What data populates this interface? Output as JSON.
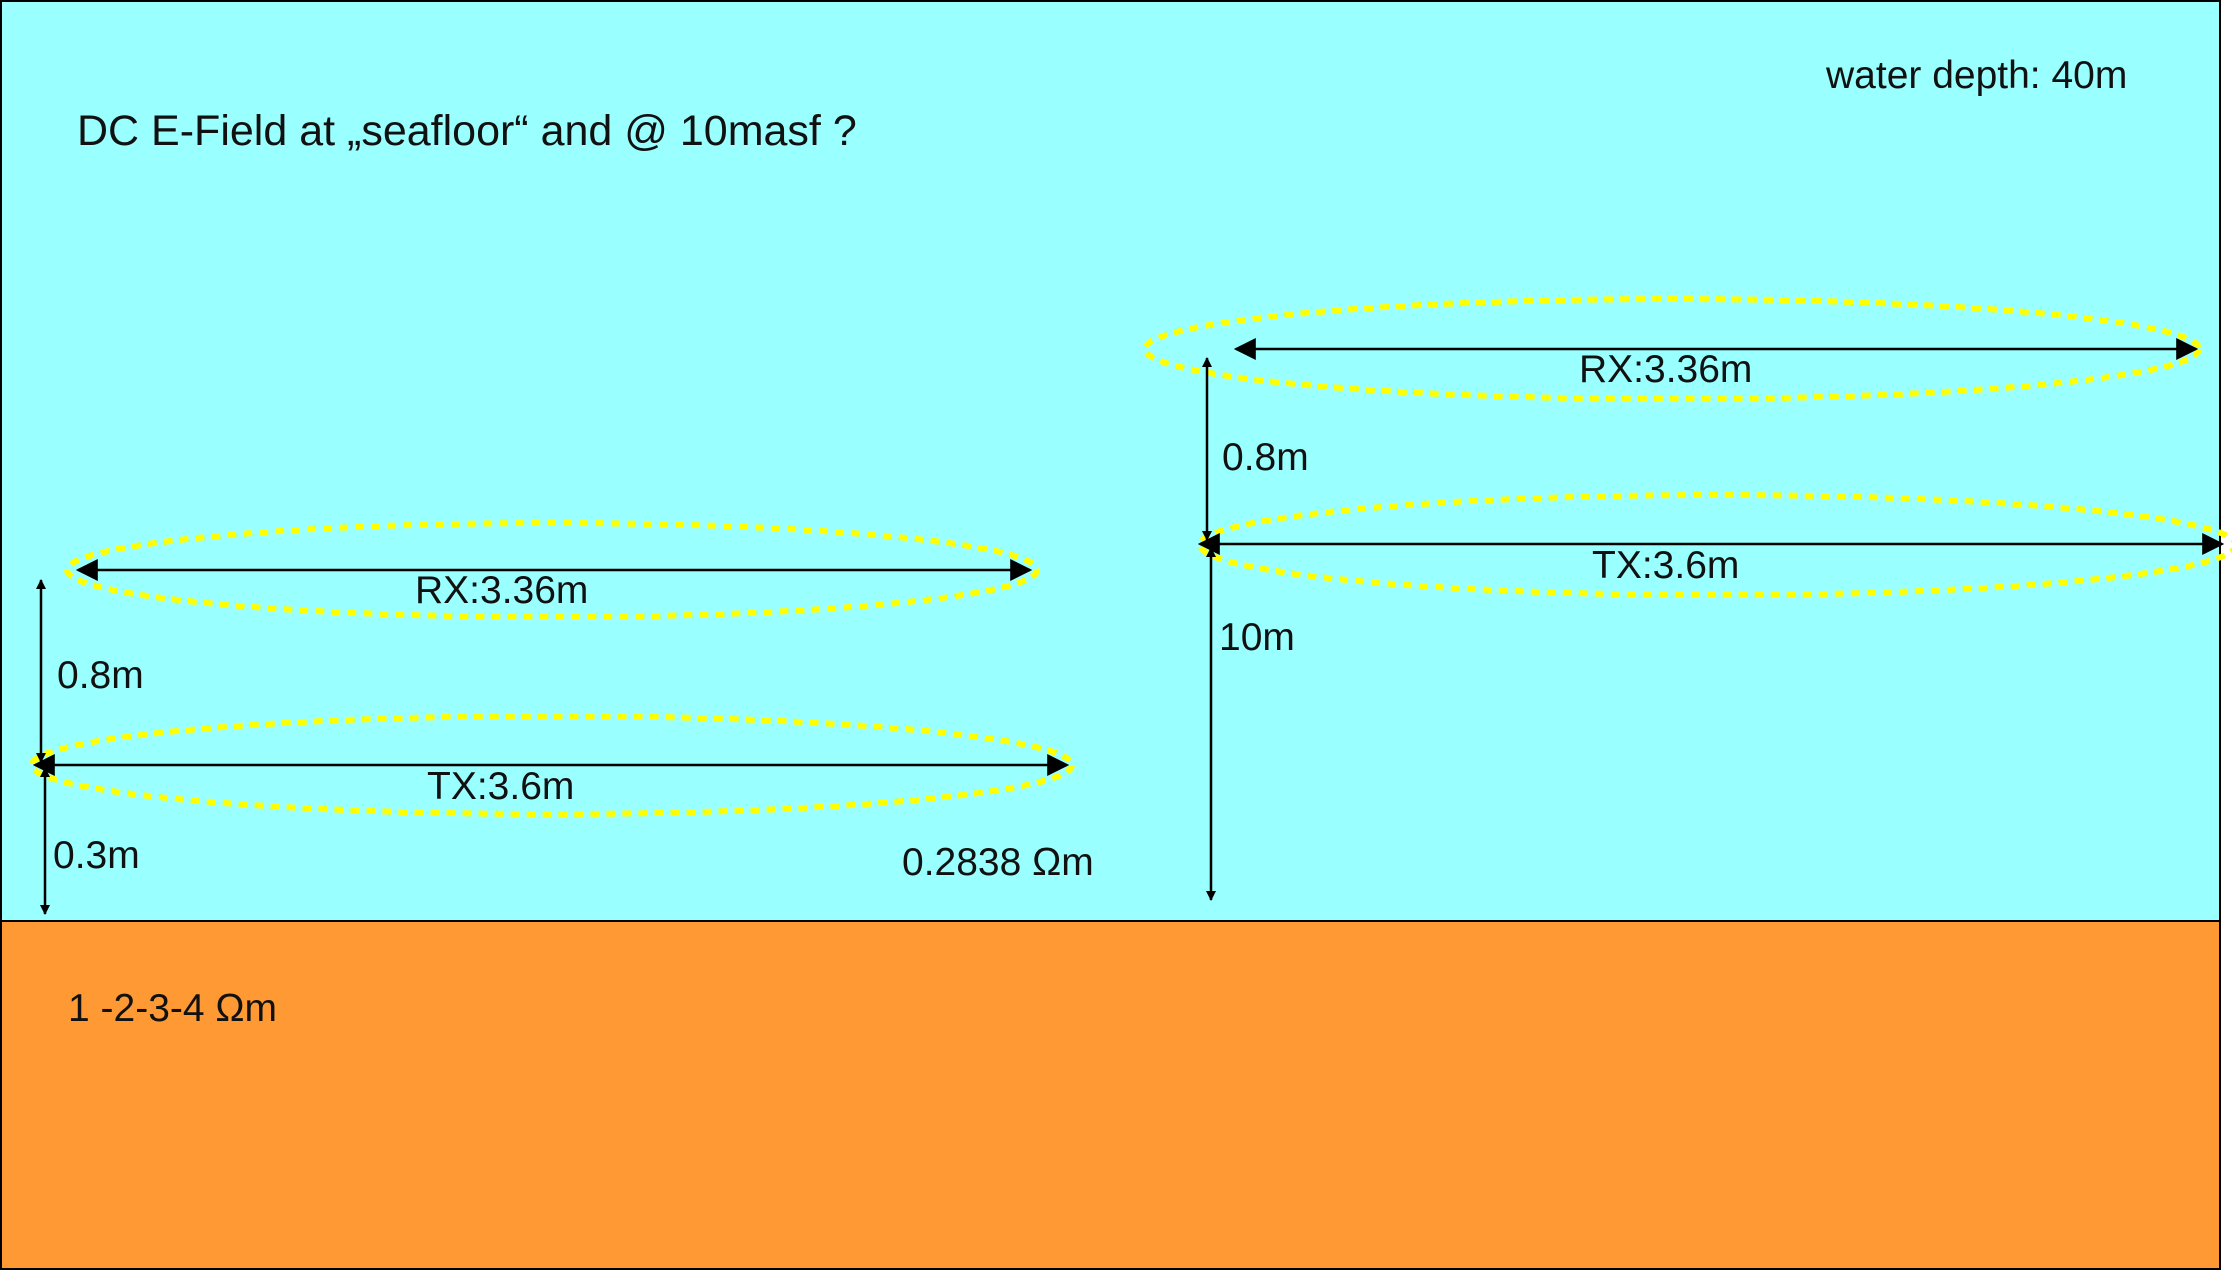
{
  "title": "DC E-Field at „seafloor“ and @ 10masf ?",
  "water_depth": "water depth: 40m",
  "water_resistivity": "0.2838 Ωm",
  "seafloor_resistivity": "1 -2-3-4 Ωm",
  "left_setup": {
    "rx_label": "RX:3.36m",
    "tx_label": "TX:3.6m",
    "rx_tx_separation": "0.8m",
    "tx_height": "0.3m"
  },
  "right_setup": {
    "rx_label": "RX:3.36m",
    "tx_label": "TX:3.6m",
    "rx_tx_separation": "0.8m",
    "tx_height": "10m"
  },
  "colors": {
    "water": "#99FFFF",
    "seafloor": "#FF9933",
    "electrode_loop": "#FFFF00",
    "line": "#000000"
  }
}
